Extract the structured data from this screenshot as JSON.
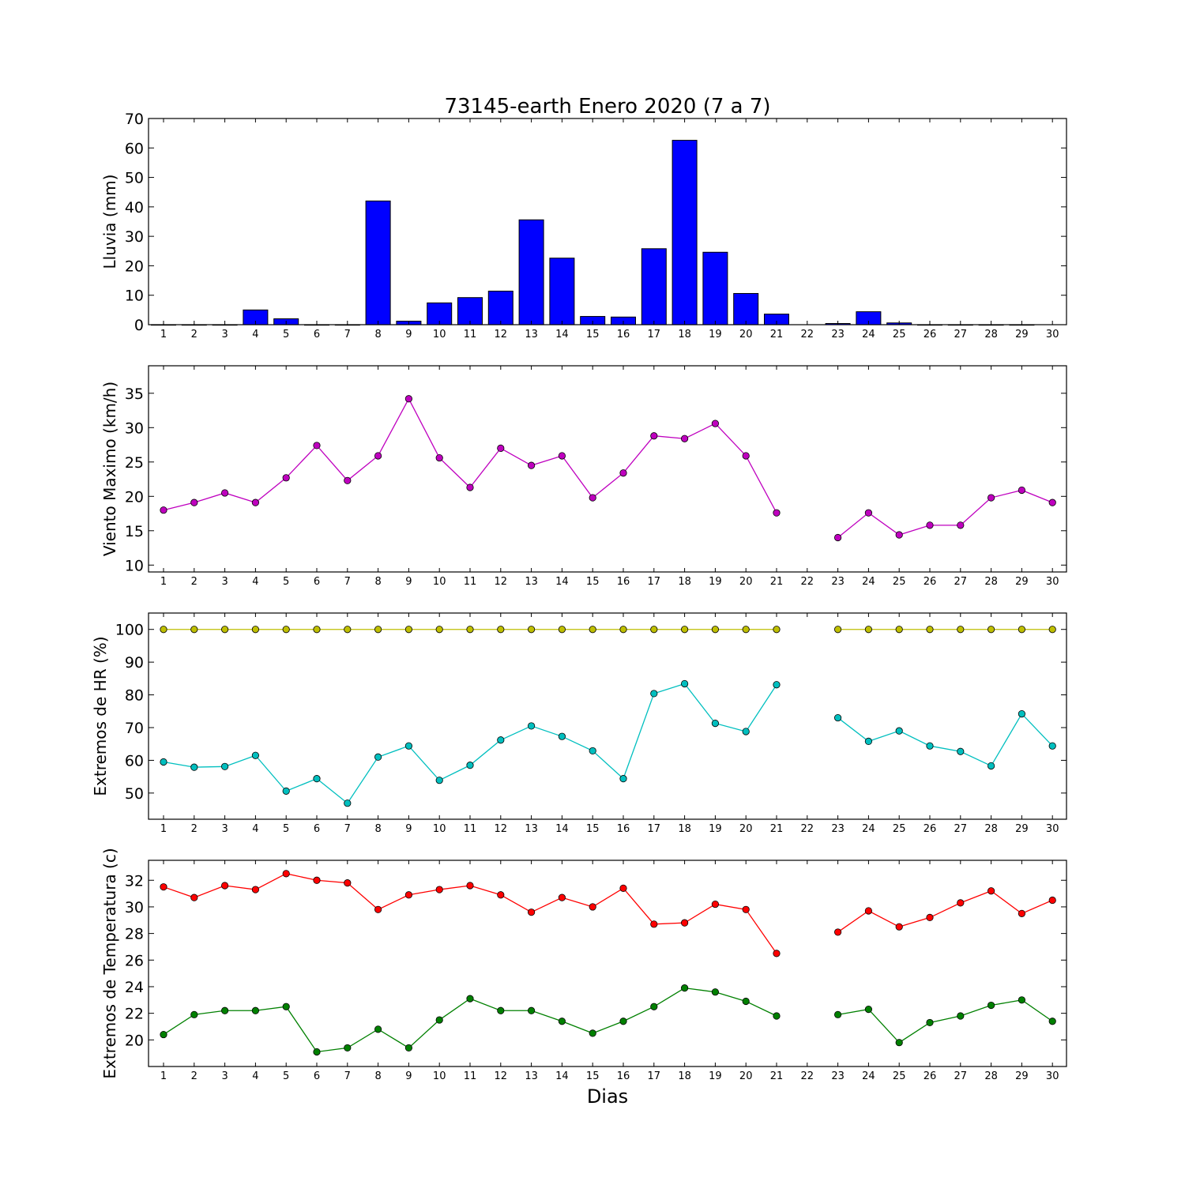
{
  "figure": {
    "title": "73145-earth Enero 2020  (7 a 7)",
    "xlabel": "Dias"
  },
  "chart_data": [
    {
      "type": "bar",
      "ylabel": "Lluvia (mm)",
      "ylim": [
        0,
        70
      ],
      "yticks": [
        0,
        10,
        20,
        30,
        40,
        50,
        60,
        70
      ],
      "grid": false,
      "categories": [
        1,
        2,
        3,
        4,
        5,
        6,
        7,
        8,
        9,
        10,
        11,
        12,
        13,
        14,
        15,
        16,
        17,
        18,
        19,
        20,
        21,
        22,
        23,
        24,
        25,
        26,
        27,
        28,
        29,
        30
      ],
      "series": [
        {
          "color": "#0000ff",
          "values": [
            0,
            0,
            0,
            5.0,
            2.0,
            0,
            0,
            42.0,
            1.2,
            7.4,
            9.2,
            11.4,
            35.6,
            22.6,
            2.8,
            2.6,
            25.8,
            62.6,
            24.6,
            10.6,
            3.6,
            null,
            0.4,
            4.4,
            0.6,
            0,
            0,
            0,
            0,
            null
          ]
        }
      ]
    },
    {
      "type": "line",
      "ylabel": "Viento Maximo (km/h)",
      "ylim": [
        9,
        39
      ],
      "yticks": [
        10,
        15,
        20,
        25,
        30,
        35
      ],
      "grid": false,
      "x": [
        1,
        2,
        3,
        4,
        5,
        6,
        7,
        8,
        9,
        10,
        11,
        12,
        13,
        14,
        15,
        16,
        17,
        18,
        19,
        20,
        21,
        22,
        23,
        24,
        25,
        26,
        27,
        28,
        29,
        30
      ],
      "series": [
        {
          "color": "#bf00bf",
          "values": [
            18.0,
            19.1,
            20.5,
            19.1,
            22.7,
            27.4,
            22.3,
            25.9,
            34.2,
            25.6,
            21.3,
            27.0,
            24.5,
            25.9,
            19.8,
            23.4,
            28.8,
            28.4,
            30.6,
            25.9,
            17.6,
            null,
            14.0,
            17.6,
            14.4,
            15.8,
            15.8,
            19.8,
            20.9,
            19.1
          ]
        }
      ]
    },
    {
      "type": "line",
      "ylabel": "Extremos de HR (%)",
      "ylim": [
        42,
        105
      ],
      "yticks": [
        50,
        60,
        70,
        80,
        90,
        100
      ],
      "grid": false,
      "x": [
        1,
        2,
        3,
        4,
        5,
        6,
        7,
        8,
        9,
        10,
        11,
        12,
        13,
        14,
        15,
        16,
        17,
        18,
        19,
        20,
        21,
        22,
        23,
        24,
        25,
        26,
        27,
        28,
        29,
        30
      ],
      "series": [
        {
          "color": "#bfbf00",
          "values": [
            100,
            100,
            100,
            100,
            100,
            100,
            100,
            100,
            100,
            100,
            100,
            100,
            100,
            100,
            100,
            100,
            100,
            100,
            100,
            100,
            100,
            null,
            100,
            100,
            100,
            100,
            100,
            100,
            100,
            100
          ]
        },
        {
          "color": "#00bfbf",
          "values": [
            59.5,
            57.9,
            58.1,
            61.5,
            50.6,
            54.4,
            46.9,
            61.0,
            64.4,
            53.9,
            58.5,
            66.2,
            70.5,
            67.3,
            62.9,
            54.4,
            80.4,
            83.4,
            71.3,
            68.8,
            83.1,
            null,
            73.0,
            65.8,
            69.0,
            64.4,
            62.7,
            58.3,
            74.2,
            64.4
          ]
        }
      ]
    },
    {
      "type": "line",
      "ylabel": "Extremos de Temperatura (c)",
      "ylim": [
        18,
        33.5
      ],
      "yticks": [
        20,
        22,
        24,
        26,
        28,
        30,
        32
      ],
      "grid": false,
      "x": [
        1,
        2,
        3,
        4,
        5,
        6,
        7,
        8,
        9,
        10,
        11,
        12,
        13,
        14,
        15,
        16,
        17,
        18,
        19,
        20,
        21,
        22,
        23,
        24,
        25,
        26,
        27,
        28,
        29,
        30
      ],
      "series": [
        {
          "color": "#ff0000",
          "values": [
            31.5,
            30.7,
            31.6,
            31.3,
            32.5,
            32.0,
            31.8,
            29.8,
            30.9,
            31.3,
            31.6,
            30.9,
            29.6,
            30.7,
            30.0,
            31.4,
            28.7,
            28.8,
            30.2,
            29.8,
            26.5,
            null,
            28.1,
            29.7,
            28.5,
            29.2,
            30.3,
            31.2,
            29.5,
            30.5
          ]
        },
        {
          "color": "#008000",
          "values": [
            20.4,
            21.9,
            22.2,
            22.2,
            22.5,
            19.1,
            19.4,
            20.8,
            19.4,
            21.5,
            23.1,
            22.2,
            22.2,
            21.4,
            20.5,
            21.4,
            22.5,
            23.9,
            23.6,
            22.9,
            21.8,
            null,
            21.9,
            22.3,
            19.8,
            21.3,
            21.8,
            22.6,
            23.0,
            21.4
          ]
        }
      ]
    }
  ]
}
